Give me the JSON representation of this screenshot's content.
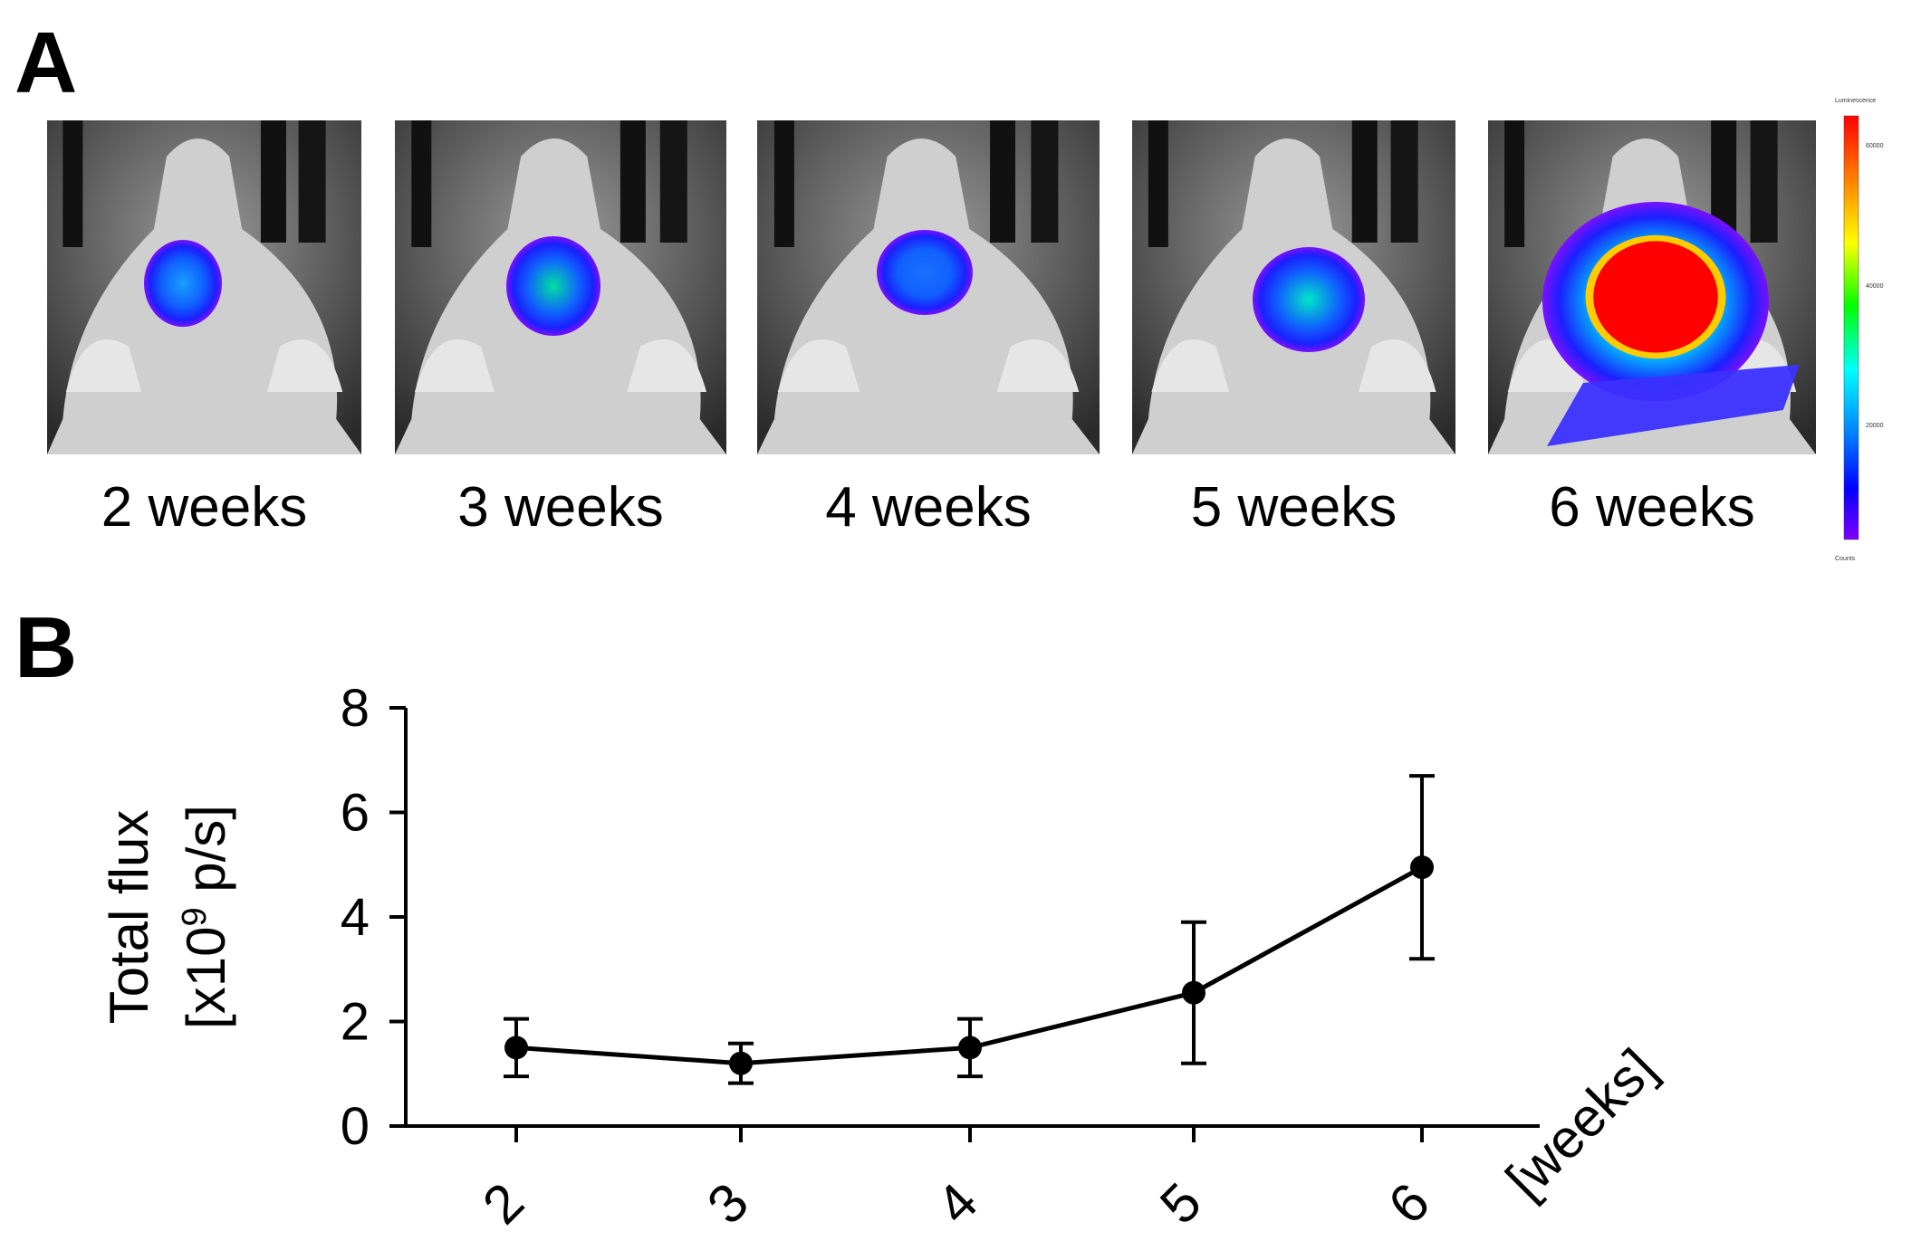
{
  "panels": {
    "a_label": "A",
    "b_label": "B"
  },
  "imaging": {
    "captions": [
      "2 weeks",
      "3 weeks",
      "4 weeks",
      "5 weeks",
      "6 weeks"
    ],
    "colorbar": {
      "title": "Luminescence",
      "footer": "Counts",
      "ticks": [
        "60000",
        "40000",
        "20000"
      ],
      "colors": [
        "#ff0000",
        "#ff8000",
        "#ffff00",
        "#00ff00",
        "#00ffff",
        "#0080ff",
        "#0000ff",
        "#8000ff"
      ]
    }
  },
  "chart_data": {
    "type": "line",
    "title": "",
    "xlabel": "[weeks]",
    "ylabel_line1": "Total flux",
    "ylabel_line2_prefix": "[x10",
    "ylabel_line2_sup": "9",
    "ylabel_line2_suffix": " p/s]",
    "x": [
      2,
      3,
      4,
      5,
      6
    ],
    "x_tick_labels": [
      "2",
      "3",
      "4",
      "5",
      "6"
    ],
    "y_ticks": [
      0,
      2,
      4,
      6,
      8
    ],
    "ylim": [
      0,
      8
    ],
    "series": [
      {
        "values": [
          1.5,
          1.2,
          1.5,
          2.55,
          4.95
        ],
        "error": [
          0.55,
          0.38,
          0.55,
          1.35,
          1.75
        ],
        "color": "#000000"
      }
    ],
    "grid": false,
    "legend": "none"
  }
}
